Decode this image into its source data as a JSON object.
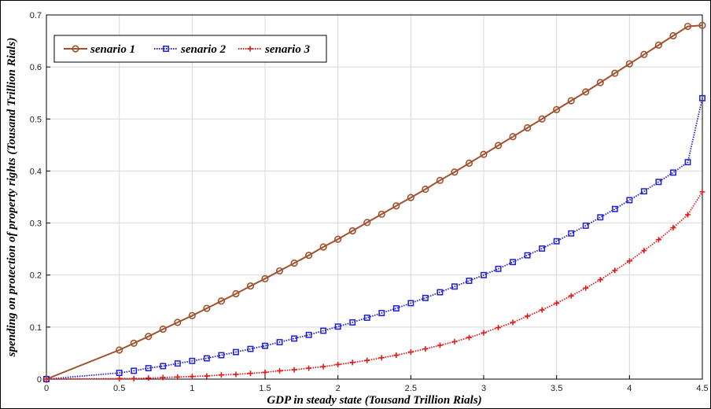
{
  "chart_data": {
    "type": "line",
    "title": "",
    "xlabel": "GDP in steady state (Tousand Trillion Rials)",
    "ylabel": "spending on protection of property rights (Tousand Trillion Rials)",
    "xlim": [
      0,
      4.5
    ],
    "ylim": [
      0,
      0.7
    ],
    "x_ticks": [
      "0",
      "0.5",
      "1",
      "1.5",
      "2",
      "2.5",
      "3",
      "3.5",
      "4",
      "4.5"
    ],
    "y_ticks": [
      "0",
      "0.1",
      "0.2",
      "0.3",
      "0.4",
      "0.5",
      "0.6",
      "0.7"
    ],
    "grid": true,
    "legend_position": "top-left",
    "x": [
      0,
      0.5,
      0.6,
      0.7,
      0.8,
      0.9,
      1.0,
      1.1,
      1.2,
      1.3,
      1.4,
      1.5,
      1.6,
      1.7,
      1.8,
      1.9,
      2.0,
      2.1,
      2.2,
      2.3,
      2.4,
      2.5,
      2.6,
      2.7,
      2.8,
      2.9,
      3.0,
      3.1,
      3.2,
      3.3,
      3.4,
      3.5,
      3.6,
      3.7,
      3.8,
      3.9,
      4.0,
      4.1,
      4.2,
      4.3,
      4.4,
      4.5
    ],
    "series": [
      {
        "name": "senario 1",
        "color": "#a0522d",
        "marker": "circle",
        "line_style": "solid",
        "values": [
          0,
          0.056,
          0.069,
          0.082,
          0.096,
          0.109,
          0.122,
          0.136,
          0.15,
          0.164,
          0.179,
          0.193,
          0.208,
          0.223,
          0.238,
          0.254,
          0.269,
          0.285,
          0.301,
          0.317,
          0.333,
          0.349,
          0.365,
          0.382,
          0.398,
          0.415,
          0.432,
          0.449,
          0.466,
          0.483,
          0.5,
          0.518,
          0.535,
          0.552,
          0.57,
          0.588,
          0.606,
          0.624,
          0.642,
          0.66,
          0.678,
          0.68
        ]
      },
      {
        "name": "senario 2",
        "color": "#1f1fd0",
        "marker": "square",
        "line_style": "dotted",
        "values": [
          0,
          0.012,
          0.016,
          0.021,
          0.025,
          0.03,
          0.035,
          0.04,
          0.046,
          0.052,
          0.058,
          0.064,
          0.071,
          0.078,
          0.085,
          0.093,
          0.101,
          0.109,
          0.118,
          0.127,
          0.136,
          0.146,
          0.156,
          0.167,
          0.178,
          0.189,
          0.2,
          0.212,
          0.225,
          0.238,
          0.251,
          0.265,
          0.28,
          0.295,
          0.311,
          0.327,
          0.344,
          0.361,
          0.379,
          0.397,
          0.417,
          0.54
        ]
      },
      {
        "name": "senario 3",
        "color": "#e11b1b",
        "marker": "plus",
        "line_style": "dotted",
        "values": [
          0,
          0.001,
          0.001,
          0.002,
          0.003,
          0.004,
          0.005,
          0.006,
          0.008,
          0.009,
          0.011,
          0.013,
          0.016,
          0.018,
          0.021,
          0.024,
          0.028,
          0.032,
          0.036,
          0.041,
          0.046,
          0.052,
          0.058,
          0.065,
          0.072,
          0.08,
          0.089,
          0.099,
          0.109,
          0.121,
          0.133,
          0.146,
          0.16,
          0.175,
          0.191,
          0.209,
          0.227,
          0.247,
          0.268,
          0.291,
          0.316,
          0.36
        ]
      }
    ]
  }
}
